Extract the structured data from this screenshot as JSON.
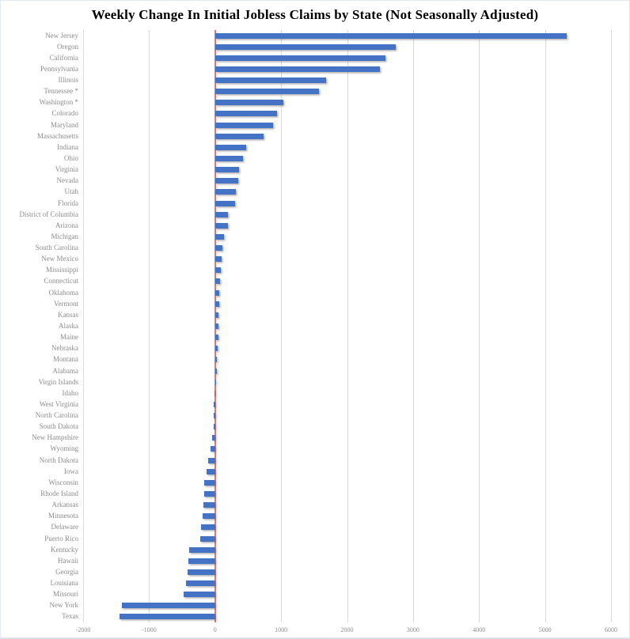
{
  "chart_data": {
    "type": "bar",
    "orientation": "horizontal",
    "title": "Weekly Change In Initial Jobless Claims by State (Not Seasonally Adjusted)",
    "categories": [
      "New Jersey",
      "Oregon",
      "California",
      "Pennsylvania",
      "Illinois",
      "Tennessee *",
      "Washington *",
      "Colorado",
      "Maryland",
      "Massachusetts",
      "Indiana",
      "Ohio",
      "Virginia",
      "Nevada",
      "Utah",
      "Florida",
      "District of Columbia",
      "Arizona",
      "Michigan",
      "South Carolina",
      "New Mexico",
      "Mississippi",
      "Connecticut",
      "Oklahoma",
      "Vermont",
      "Kansas",
      "Alaska",
      "Maine",
      "Nebraska",
      "Montana",
      "Alabama",
      "Virgin Islands",
      "Idaho",
      "West Virginia",
      "North Carolina",
      "South Dakota",
      "New Hampshire",
      "Wyoming",
      "North Dakota",
      "Iowa",
      "Wisconsin",
      "Rhode Island",
      "Arkansas",
      "Minnesota",
      "Delaware",
      "Puerto Rico",
      "Kentucky",
      "Hawaii",
      "Georgia",
      "Louisiana",
      "Missouri",
      "New York",
      "Texas"
    ],
    "values": [
      5330,
      2740,
      2580,
      2500,
      1680,
      1570,
      1040,
      940,
      880,
      740,
      470,
      420,
      365,
      355,
      310,
      300,
      195,
      190,
      140,
      115,
      100,
      85,
      72,
      65,
      60,
      55,
      50,
      45,
      40,
      32,
      25,
      5,
      -5,
      -15,
      -20,
      -25,
      -50,
      -70,
      -105,
      -130,
      -160,
      -170,
      -180,
      -190,
      -210,
      -230,
      -395,
      -410,
      -420,
      -435,
      -480,
      -1410,
      -1450
    ],
    "xlim": [
      -2000,
      6000
    ],
    "ticks": [
      -2000,
      -1000,
      0,
      1000,
      2000,
      3000,
      4000,
      5000,
      6000
    ],
    "grid": true,
    "legend_position": "none",
    "colors": {
      "bar": "#4472C4",
      "zero_line": "#DB7A73",
      "gridline": "#D9D9D9",
      "category_label": "#8C8C8C",
      "tick_label": "#8C8C8C",
      "title": "#000000",
      "background": "#FFFFFF"
    }
  }
}
